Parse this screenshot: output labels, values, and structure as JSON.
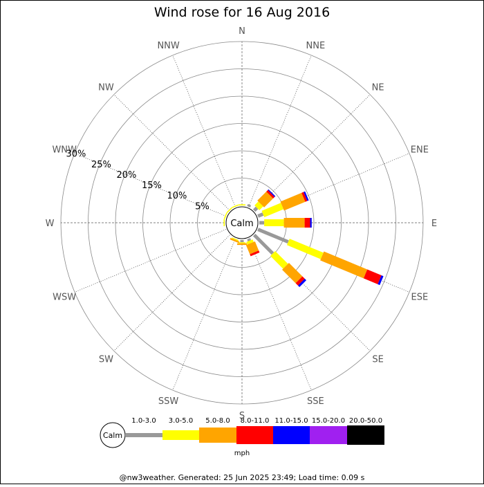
{
  "chart_data": {
    "type": "windrose",
    "title": "Wind rose for 16 Aug 2016",
    "directions": [
      "N",
      "NNE",
      "NE",
      "ENE",
      "E",
      "ESE",
      "SE",
      "SSE",
      "S",
      "SSW",
      "SW",
      "WSW",
      "W",
      "WNW",
      "NW",
      "NNW"
    ],
    "radial_ticks": [
      "5%",
      "10%",
      "15%",
      "20%",
      "25%",
      "30%"
    ],
    "radial_max_percent": 30,
    "calm_label": "Calm",
    "unit": "mph",
    "speed_bins": [
      {
        "label": "1.0-3.0",
        "color": "#999999"
      },
      {
        "label": "3.0-5.0",
        "color": "#ffff00"
      },
      {
        "label": "5.0-8.0",
        "color": "#ffa500"
      },
      {
        "label": "8.0-11.0",
        "color": "#ff0000"
      },
      {
        "label": "11.0-15.0",
        "color": "#0000ff"
      },
      {
        "label": "15.0-20.0",
        "color": "#a020f0"
      },
      {
        "label": "20.0-50.0",
        "color": "#000000"
      }
    ],
    "series": [
      {
        "direction": "N",
        "values": [
          0.0,
          0.2,
          0.0,
          0.0,
          0.0,
          0.0,
          0.0
        ]
      },
      {
        "direction": "NNE",
        "values": [
          0.4,
          0.0,
          0.0,
          0.0,
          0.0,
          0.0,
          0.0
        ]
      },
      {
        "direction": "NE",
        "values": [
          0.7,
          1.0,
          2.3,
          0.4,
          0.2,
          0.0,
          0.0
        ]
      },
      {
        "direction": "ENE",
        "values": [
          1.0,
          3.8,
          4.2,
          0.4,
          0.3,
          0.0,
          0.0
        ]
      },
      {
        "direction": "E",
        "values": [
          0.9,
          3.6,
          3.8,
          1.0,
          0.3,
          0.0,
          0.0
        ]
      },
      {
        "direction": "ESE",
        "values": [
          6.0,
          6.7,
          8.6,
          2.8,
          0.4,
          0.0,
          0.0
        ]
      },
      {
        "direction": "SE",
        "values": [
          4.8,
          3.3,
          3.5,
          0.6,
          0.4,
          0.0,
          0.0
        ]
      },
      {
        "direction": "SSE",
        "values": [
          0.4,
          0.5,
          1.8,
          0.4,
          0.0,
          0.0,
          0.0
        ]
      },
      {
        "direction": "S",
        "values": [
          0.4,
          0.2,
          0.3,
          0.0,
          0.0,
          0.0,
          0.0
        ]
      },
      {
        "direction": "SSW",
        "values": [
          0.0,
          0.2,
          0.3,
          0.0,
          0.0,
          0.0,
          0.0
        ]
      },
      {
        "direction": "SW",
        "values": [
          0.0,
          0.0,
          0.0,
          0.0,
          0.0,
          0.0,
          0.0
        ]
      },
      {
        "direction": "WSW",
        "values": [
          0.0,
          0.0,
          0.0,
          0.0,
          0.0,
          0.0,
          0.0
        ]
      },
      {
        "direction": "W",
        "values": [
          0.0,
          0.2,
          0.0,
          0.0,
          0.0,
          0.0,
          0.0
        ]
      },
      {
        "direction": "WNW",
        "values": [
          0.0,
          0.2,
          0.0,
          0.0,
          0.0,
          0.0,
          0.0
        ]
      },
      {
        "direction": "NW",
        "values": [
          0.0,
          0.2,
          0.0,
          0.0,
          0.0,
          0.0,
          0.0
        ]
      },
      {
        "direction": "NNW",
        "values": [
          0.0,
          0.2,
          0.0,
          0.0,
          0.0,
          0.0,
          0.0
        ]
      }
    ]
  },
  "footer": {
    "text": "@nw3weather. Generated: 25 Jun 2025 23:49; Load time: 0.09 s"
  },
  "colors": {
    "grid": "#888888",
    "axis_label": "#555555",
    "background": "#ffffff"
  }
}
